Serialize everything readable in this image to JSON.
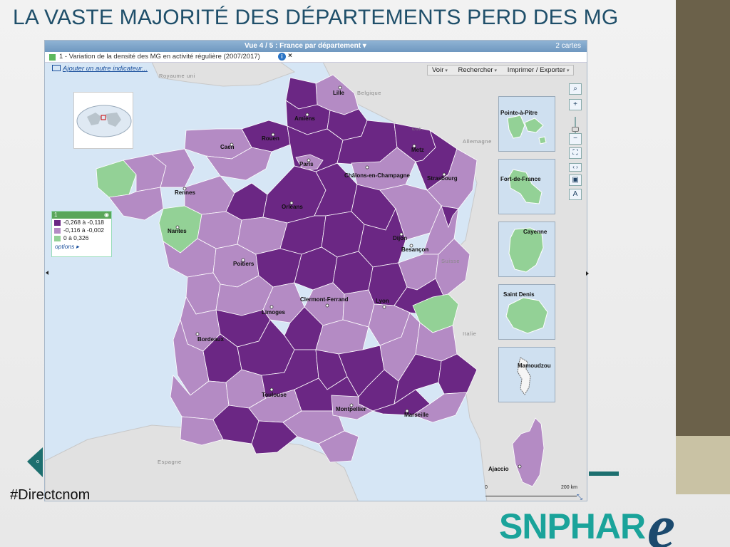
{
  "slide": {
    "title": "LA VASTE MAJORITÉ DES DÉPARTEMENTS PERD DES MG",
    "hashtag": "#Directcnom",
    "brand_main": "SNPHAR",
    "brand_e": "e"
  },
  "app": {
    "view_selector": "Vue 4 / 5 : France par département ▾",
    "maps_count": "2 cartes",
    "indicator_label": "1 - Variation de la densité des MG en activité régulière (2007/2017)",
    "add_indicator": "Ajouter un autre indicateur...",
    "tools": [
      "Voir",
      "Rechercher",
      "Imprimer / Exporter"
    ]
  },
  "legend": {
    "header": "1",
    "classes": [
      {
        "label": "-0,268 à -0,118",
        "color": "#6b2784"
      },
      {
        "label": "-0,116 à -0,002",
        "color": "#b48bc4"
      },
      {
        "label": "0 à 0,326",
        "color": "#93d196"
      }
    ],
    "options": "options ▸"
  },
  "colors": {
    "strong_decline": "#6b2784",
    "moderate_decline": "#b48bc4",
    "increase": "#93d196",
    "neighbor_land": "#e1e1e1",
    "sea": "#d6e6f5"
  },
  "cities": [
    "Lille",
    "Amiens",
    "Rouen",
    "Caen",
    "Paris",
    "Metz",
    "Châlons-en-Champagne",
    "Strasbourg",
    "Rennes",
    "Orléans",
    "Nantes",
    "Dijon",
    "Besançon",
    "Poitiers",
    "Limoges",
    "Clermont-Ferrand",
    "Lyon",
    "Bordeaux",
    "Toulouse",
    "Montpellier",
    "Marseille",
    "Ajaccio"
  ],
  "countries": [
    "Royaume uni",
    "Belgique",
    "Lux.",
    "Allemagne",
    "Suisse",
    "Italie",
    "Espagne"
  ],
  "overseas": [
    "Pointe-à-Pitre",
    "Fort-de-France",
    "Cayenne",
    "Saint Denis",
    "Mamoudzou"
  ],
  "scale": {
    "left": "0",
    "right": "200 km"
  }
}
